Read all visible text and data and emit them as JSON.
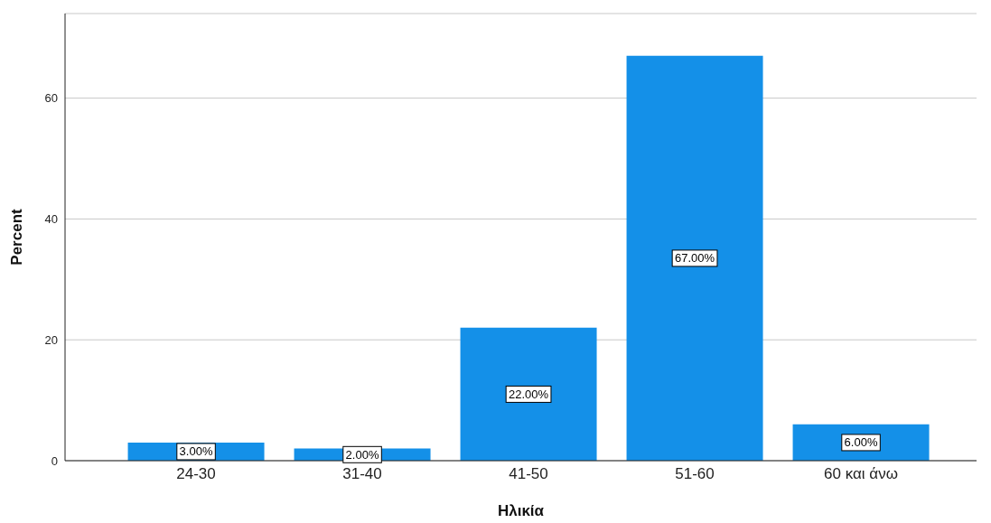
{
  "chart_data": {
    "type": "bar",
    "xlabel": "Ηλικία",
    "ylabel": "Percent",
    "categories": [
      "24-30",
      "31-40",
      "41-50",
      "51-60",
      "60 και άνω"
    ],
    "values": [
      3,
      2,
      22,
      67,
      6
    ],
    "value_labels": [
      "3.00%",
      "2.00%",
      "22.00%",
      "67.00%",
      "6.00%"
    ],
    "color": "#1490e8",
    "ylim": [
      0,
      74
    ],
    "yticks": [
      0,
      20,
      40,
      60
    ],
    "grid": "y",
    "legend": false
  }
}
